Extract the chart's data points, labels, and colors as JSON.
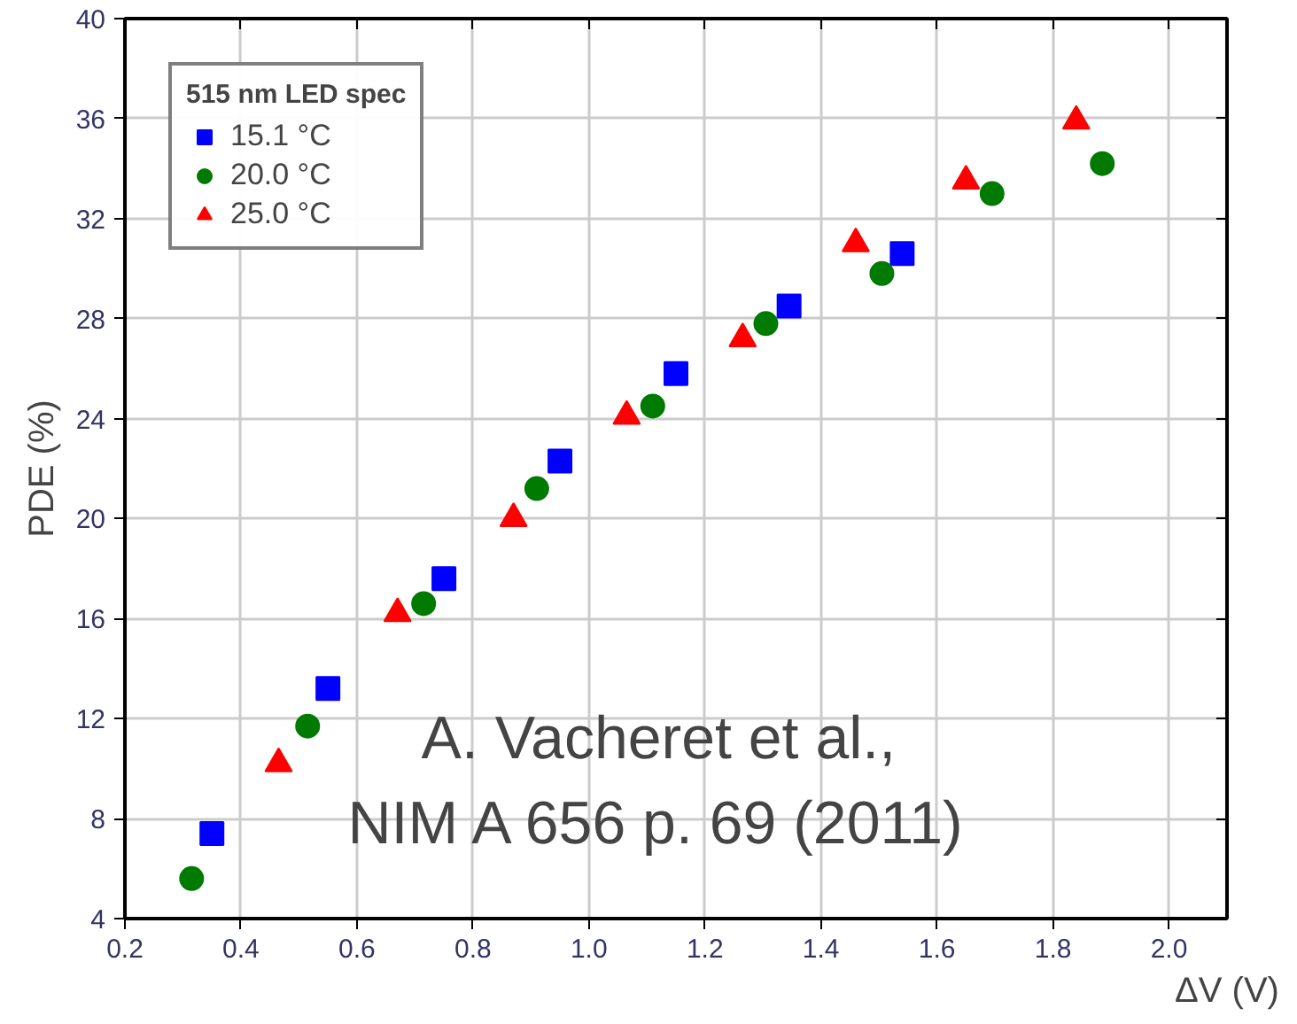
{
  "chart_data": {
    "type": "scatter",
    "xlabel": "ΔV (V)",
    "ylabel": "PDE (%)",
    "legend_title": "515 nm LED spec",
    "xlim": [
      0.2,
      2.1
    ],
    "ylim": [
      4,
      40
    ],
    "xticks": [
      {
        "value": 0.2,
        "label": "0.2"
      },
      {
        "value": 0.4,
        "label": "0.4"
      },
      {
        "value": 0.6,
        "label": "0.6"
      },
      {
        "value": 0.8,
        "label": "0.8"
      },
      {
        "value": 1.0,
        "label": "1.0"
      },
      {
        "value": 1.2,
        "label": "1.2"
      },
      {
        "value": 1.4,
        "label": "1.4"
      },
      {
        "value": 1.6,
        "label": "1.6"
      },
      {
        "value": 1.8,
        "label": "1.8"
      },
      {
        "value": 2.0,
        "label": "2.0"
      }
    ],
    "yticks": [
      4,
      8,
      12,
      16,
      20,
      24,
      28,
      32,
      36,
      40
    ],
    "grid": true,
    "legend": "top left",
    "annotations": [
      "A. Vacheret et al.,\nNIM A 656 p. 69 (2011)"
    ],
    "series": [
      {
        "name": "15.1 °C",
        "color": "#0000ff",
        "marker": "square",
        "x": [
          0.35,
          0.55,
          0.75,
          0.95,
          1.15,
          1.345,
          1.54
        ],
        "values": [
          7.4,
          13.2,
          17.6,
          22.3,
          25.8,
          28.5,
          30.6
        ]
      },
      {
        "name": "20.0 °C",
        "color": "#007a00",
        "marker": "circle",
        "x": [
          0.315,
          0.515,
          0.715,
          0.91,
          1.11,
          1.305,
          1.505,
          1.695,
          1.885
        ],
        "values": [
          5.6,
          11.7,
          16.6,
          21.2,
          24.5,
          27.8,
          29.8,
          33.0,
          34.2
        ]
      },
      {
        "name": "25.0 °C",
        "color": "#ff0000",
        "marker": "triangle",
        "x": [
          0.465,
          0.67,
          0.87,
          1.065,
          1.265,
          1.46,
          1.65,
          1.84
        ],
        "values": [
          10.2,
          16.2,
          20.0,
          24.1,
          27.2,
          31.0,
          33.5,
          35.9
        ]
      }
    ]
  }
}
